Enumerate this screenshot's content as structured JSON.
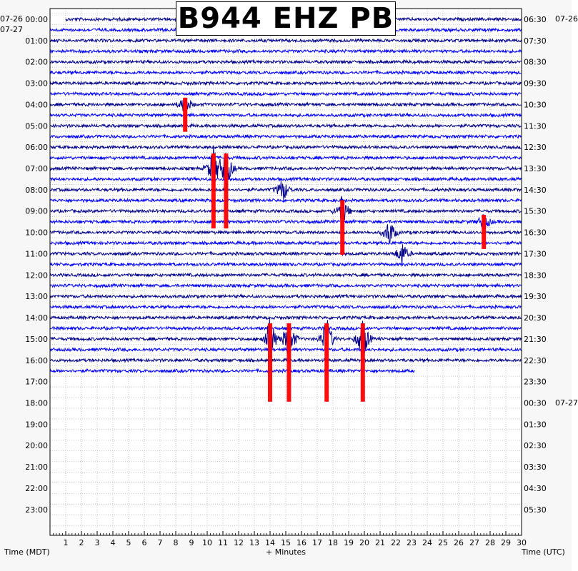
{
  "chart_data": {
    "type": "line",
    "title": "B944 EHZ PB",
    "xlabel": "+ Minutes",
    "ylabel_left": "Time (MDT)",
    "ylabel_right": "Time (UTC)",
    "x_ticks": [
      "1",
      "2",
      "3",
      "4",
      "5",
      "6",
      "7",
      "8",
      "9",
      "10",
      "11",
      "12",
      "13",
      "14",
      "15",
      "16",
      "17",
      "18",
      "19",
      "20",
      "21",
      "22",
      "23",
      "24",
      "25",
      "26",
      "27",
      "28",
      "29",
      "30"
    ],
    "xlim": [
      0,
      30
    ],
    "left_date_top": "07-26",
    "left_date_first": "07-27",
    "right_date_top": "07-26",
    "right_date_mid": "07-27",
    "left_hour_labels": [
      "00:00",
      "01:00",
      "02:00",
      "03:00",
      "04:00",
      "05:00",
      "06:00",
      "07:00",
      "08:00",
      "09:00",
      "10:00",
      "11:00",
      "12:00",
      "13:00",
      "14:00",
      "15:00",
      "16:00",
      "17:00",
      "18:00",
      "19:00",
      "20:00",
      "21:00",
      "22:00",
      "23:00"
    ],
    "right_hour_labels": [
      "06:30",
      "07:30",
      "08:30",
      "09:30",
      "10:30",
      "11:30",
      "12:30",
      "13:30",
      "14:30",
      "15:30",
      "16:30",
      "17:30",
      "18:30",
      "19:30",
      "20:30",
      "21:30",
      "22:30",
      "23:30",
      "00:30",
      "01:30",
      "02:30",
      "03:30",
      "04:30",
      "05:30"
    ],
    "rows_per_hour": 2,
    "trace_colors": [
      "#00008b",
      "#0000ff"
    ],
    "clip_color": "#ff0000",
    "grid": "dotted",
    "data_until_row": 33,
    "data_until_minute": 23.2,
    "events": [
      {
        "row": 8,
        "minute": 8.6,
        "amp": 1.0,
        "clipped": true
      },
      {
        "row": 14,
        "minute": 10.4,
        "amp": 2.2,
        "clipped": true
      },
      {
        "row": 14,
        "minute": 11.2,
        "amp": 2.2,
        "clipped": true
      },
      {
        "row": 16,
        "minute": 14.8,
        "amp": 1.3,
        "clipped": false
      },
      {
        "row": 18,
        "minute": 18.6,
        "amp": 1.6,
        "clipped": true
      },
      {
        "row": 20,
        "minute": 21.6,
        "amp": 1.4,
        "clipped": false
      },
      {
        "row": 19,
        "minute": 27.6,
        "amp": 1.0,
        "clipped": true
      },
      {
        "row": 22,
        "minute": 22.4,
        "amp": 1.2,
        "clipped": false
      },
      {
        "row": 30,
        "minute": 14.0,
        "amp": 2.3,
        "clipped": true
      },
      {
        "row": 30,
        "minute": 15.2,
        "amp": 2.3,
        "clipped": true
      },
      {
        "row": 30,
        "minute": 17.6,
        "amp": 2.3,
        "clipped": true
      },
      {
        "row": 30,
        "minute": 19.9,
        "amp": 2.3,
        "clipped": true
      }
    ]
  }
}
